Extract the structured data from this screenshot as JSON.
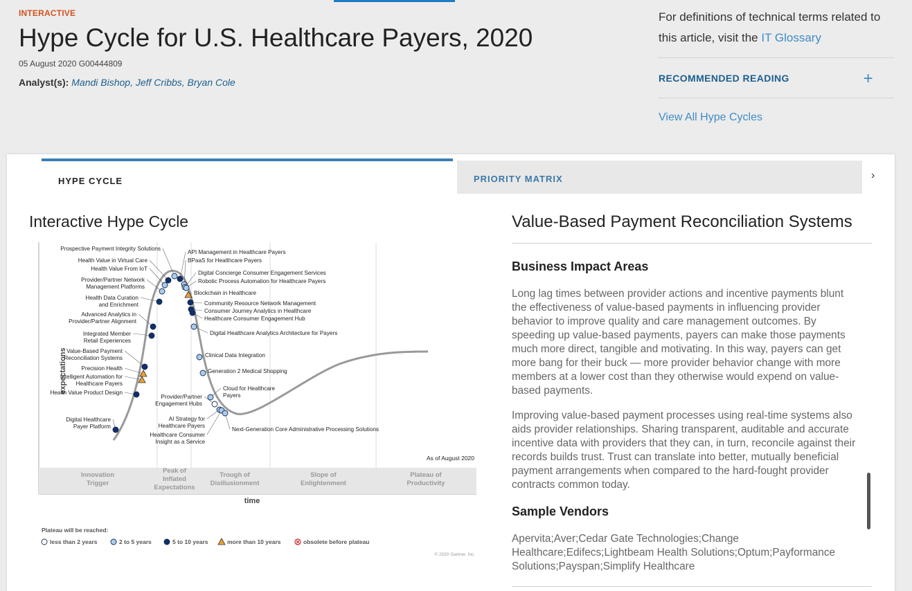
{
  "header": {
    "kicker": "INTERACTIVE",
    "title": "Hype Cycle for U.S. Healthcare Payers, 2020",
    "meta": "05 August 2020 G00444809",
    "analysts_label": "Analyst(s):",
    "analysts": "Mandi Bishop, Jeff Cribbs, Bryan Cole"
  },
  "sidebar": {
    "glossary_text": "For definitions of technical terms related to this article, visit the",
    "glossary_link": "IT Glossary",
    "recommended_reading": "RECOMMENDED READING",
    "view_all": "View All Hype Cycles"
  },
  "tabs": {
    "hype_cycle": "HYPE CYCLE",
    "priority_matrix": "PRIORITY MATRIX"
  },
  "chart": {
    "title": "Interactive Hype Cycle",
    "y_label": "expectations",
    "x_label": "time",
    "as_of": "As of August 2020",
    "copyright": "© 2020 Gartner, Inc.",
    "phases": [
      {
        "line1": "Innovation",
        "line2": "Trigger",
        "line3": ""
      },
      {
        "line1": "Peak of",
        "line2": "Inflated",
        "line3": "Expectations"
      },
      {
        "line1": "Trough of",
        "line2": "Disillusionment",
        "line3": ""
      },
      {
        "line1": "Slope of",
        "line2": "Enlightenment",
        "line3": ""
      },
      {
        "line1": "Plateau of",
        "line2": "Productivity",
        "line3": ""
      }
    ],
    "legend_title": "Plateau will be reached:",
    "legend": [
      {
        "label": "less than 2 years",
        "type": "white"
      },
      {
        "label": "2 to 5 years",
        "type": "light"
      },
      {
        "label": "5 to 10 years",
        "type": "dark"
      },
      {
        "label": "more than 10 years",
        "type": "triangle"
      },
      {
        "label": "obsolete before plateau",
        "type": "obsolete"
      }
    ],
    "colors": {
      "light": "#a9cdef",
      "dark": "#0f2f6e",
      "triangle": "#f0a030",
      "curve": "#999999"
    },
    "technologies": [
      {
        "name1": "Digital Healthcare",
        "name2": "Payer Platform",
        "type": "dark"
      },
      {
        "name1": "Health Value Product Design",
        "name2": "",
        "type": "dark"
      },
      {
        "name1": "Intelligent Automation for",
        "name2": "Healthcare Payers",
        "type": "triangle"
      },
      {
        "name1": "Precision Health",
        "name2": "",
        "type": "triangle"
      },
      {
        "name1": "Value-Based Payment",
        "name2": "Reconciliation Systems",
        "type": "dark"
      },
      {
        "name1": "Integrated Member",
        "name2": "Retail Experiences",
        "type": "dark"
      },
      {
        "name1": "Advanced Analytics in",
        "name2": "Provider/Partner Alignment",
        "type": "dark"
      },
      {
        "name1": "Health Data Curation",
        "name2": "and Enrichment",
        "type": "dark"
      },
      {
        "name1": "Provider/Partner Network",
        "name2": "Management Platforms",
        "type": "light"
      },
      {
        "name1": "Health Value From IoT",
        "name2": "",
        "type": "light"
      },
      {
        "name1": "Health Value in Virtual Care",
        "name2": "",
        "type": "dark"
      },
      {
        "name1": "Prospective Payment Integrity Solutions",
        "name2": "",
        "type": "light"
      },
      {
        "name1": "API Management in Healthcare Payers",
        "name2": "",
        "type": "dark"
      },
      {
        "name1": "BPaaS for Healthcare Payers",
        "name2": "",
        "type": "light"
      },
      {
        "name1": "Digital Concierge Consumer Engagement Services",
        "name2": "",
        "type": "light"
      },
      {
        "name1": "Robotic Process Automation for Healthcare Payers",
        "name2": "",
        "type": "light"
      },
      {
        "name1": "Blockchain in Healthcare",
        "name2": "",
        "type": "triangle"
      },
      {
        "name1": "Community Resource Network Management",
        "name2": "",
        "type": "dark"
      },
      {
        "name1": "Consumer Journey Analytics in Healthcare",
        "name2": "",
        "type": "dark"
      },
      {
        "name1": "Healthcare Consumer Engagement Hub",
        "name2": "",
        "type": "dark"
      },
      {
        "name1": "Digital Healthcare Analytics Architecture for Payers",
        "name2": "",
        "type": "light"
      },
      {
        "name1": "Clinical Data Integration",
        "name2": "",
        "type": "light"
      },
      {
        "name1": "Generation 2 Medical Shopping",
        "name2": "",
        "type": "light"
      },
      {
        "name1": "Cloud for Healthcare",
        "name2": "Payers",
        "type": "light"
      },
      {
        "name1": "Provider/Partner",
        "name2": "Engagement Hubs",
        "type": "white"
      },
      {
        "name1": "AI Strategy for",
        "name2": "Healthcare Payers",
        "type": "light"
      },
      {
        "name1": "Healthcare Consumer",
        "name2": "Insight as a Service",
        "type": "light"
      },
      {
        "name1": "Next-Generation Core Administrative Processing Solutions",
        "name2": "",
        "type": "light"
      }
    ]
  },
  "detail": {
    "title": "Value-Based Payment Reconciliation Systems",
    "business_impact_title": "Business Impact Areas",
    "para1": "Long lag times between provider actions and incentive payments blunt the effectiveness of value-based payments in influencing provider behavior to improve quality and care management outcomes. By speeding up value-based payments, payers can make those payments much more direct, tangible and motivating. In this way, payers can get more bang for their buck — more provider behavior change with more members at a lower cost than they otherwise would expend on value-based payments.",
    "para2": "Improving value-based payment processes using real-time systems also aids provider relationships. Sharing transparent, auditable and accurate incentive data with providers that they can, in turn, reconcile against their records builds trust. Trust can translate into better, mutually beneficial payment arrangements when compared to the hard-fought provider contracts common today.",
    "vendors_title": "Sample Vendors",
    "vendors": "Apervita;Aver;Cedar Gate Technologies;Change Healthcare;Edifecs;Lightbeam Health Solutions;Optum;Payformance Solutions;Payspan;Simplify Healthcare"
  }
}
